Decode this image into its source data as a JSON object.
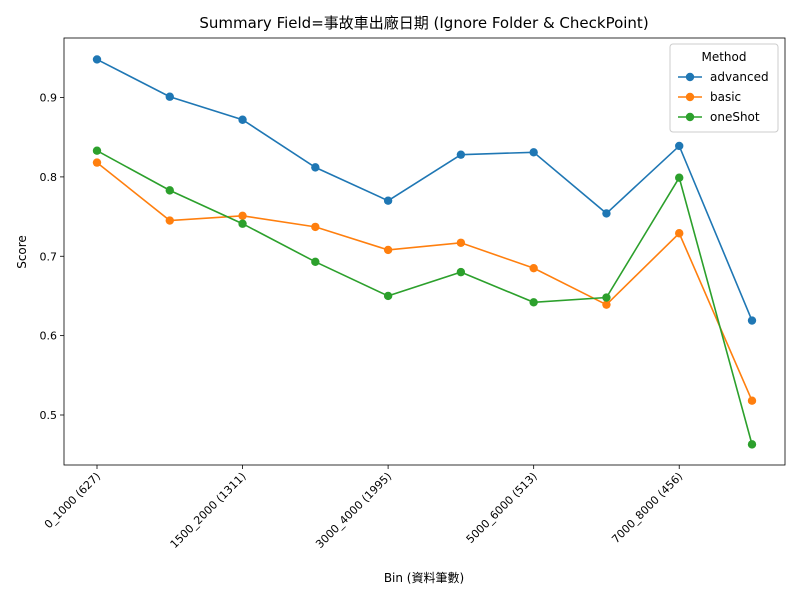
{
  "chart_data": {
    "type": "line",
    "title": "Summary Field=事故車出廠日期 (Ignore Folder & CheckPoint)",
    "xlabel": "Bin (資料筆數)",
    "ylabel": "Score",
    "x_tick_labels": [
      "0_1000 (627)",
      "1500_2000 (1311)",
      "3000_4000 (1995)",
      "5000_6000 (513)",
      "7000_8000 (456)"
    ],
    "x_tick_indices": [
      0,
      2,
      4,
      6,
      8
    ],
    "y_ticks": [
      0.5,
      0.6,
      0.7,
      0.8,
      0.9
    ],
    "y_tick_labels": [
      "0.5",
      "0.6",
      "0.7",
      "0.8",
      "0.9"
    ],
    "ylim": [
      0.437,
      0.975
    ],
    "x_count": 10,
    "legend": {
      "title": "Method",
      "placement": "top-right"
    },
    "series": [
      {
        "name": "advanced",
        "color": "#1f77b4",
        "values": [
          0.948,
          0.901,
          0.872,
          0.812,
          0.77,
          0.828,
          0.831,
          0.754,
          0.839,
          0.619
        ]
      },
      {
        "name": "basic",
        "color": "#ff7f0e",
        "values": [
          0.818,
          0.745,
          0.751,
          0.737,
          0.708,
          0.717,
          0.685,
          0.639,
          0.729,
          0.518
        ]
      },
      {
        "name": "oneShot",
        "color": "#2ca02c",
        "values": [
          0.833,
          0.783,
          0.741,
          0.693,
          0.65,
          0.68,
          0.642,
          0.648,
          0.799,
          0.463
        ]
      }
    ]
  }
}
